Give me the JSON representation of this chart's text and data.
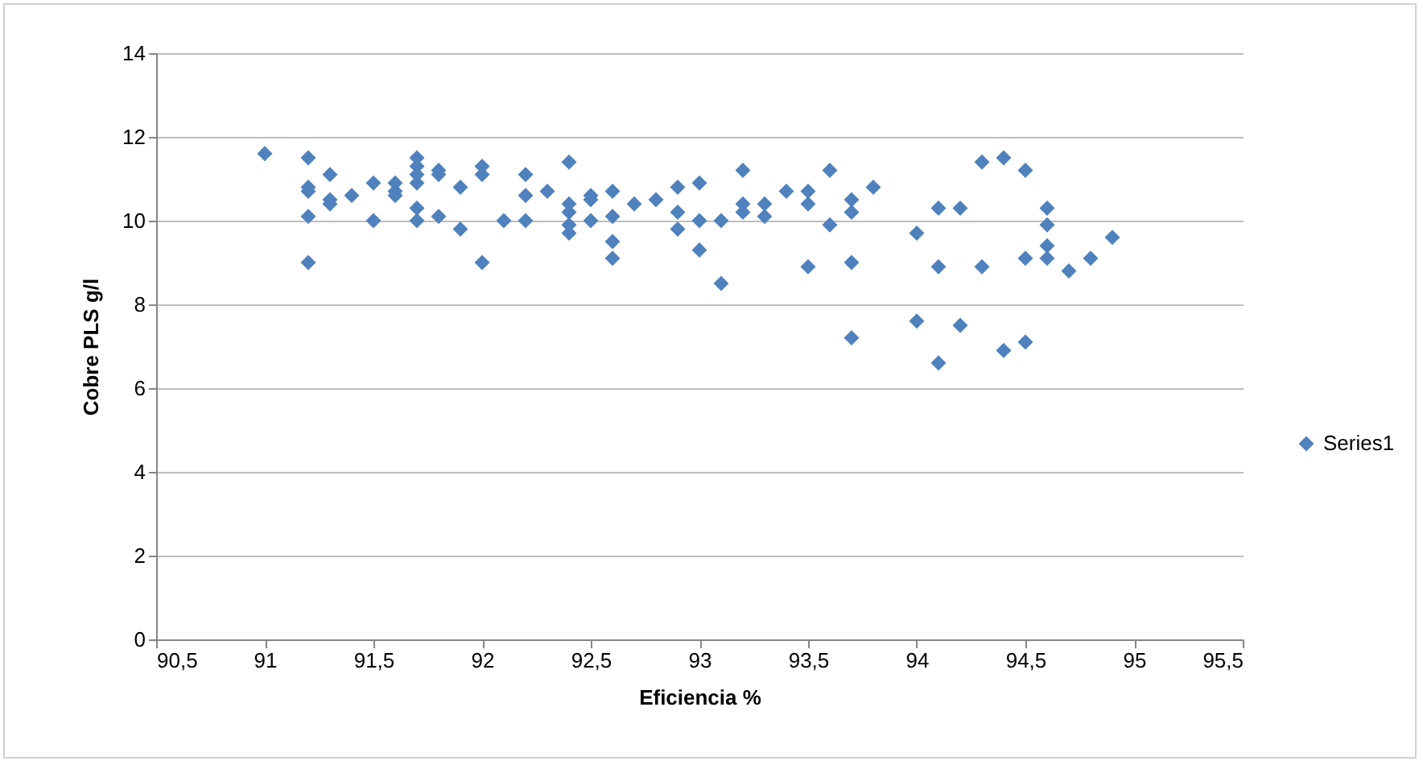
{
  "chart_data": {
    "type": "scatter",
    "xlabel": "Eficiencia %",
    "ylabel": "Cobre PLS g/l",
    "x": [
      91.0,
      91.2,
      91.2,
      91.2,
      91.2,
      91.2,
      91.3,
      91.3,
      91.3,
      91.4,
      91.5,
      91.5,
      91.6,
      91.6,
      91.6,
      91.7,
      91.7,
      91.7,
      91.7,
      91.7,
      91.7,
      91.8,
      91.8,
      91.8,
      91.9,
      91.9,
      92.0,
      92.0,
      92.0,
      92.1,
      92.2,
      92.2,
      92.2,
      92.3,
      92.4,
      92.4,
      92.4,
      92.4,
      92.4,
      92.5,
      92.5,
      92.5,
      92.6,
      92.6,
      92.6,
      92.6,
      92.7,
      92.8,
      92.9,
      92.9,
      92.9,
      93.0,
      93.0,
      93.0,
      93.1,
      93.1,
      93.2,
      93.2,
      93.2,
      93.3,
      93.3,
      93.4,
      93.5,
      93.5,
      93.5,
      93.6,
      93.6,
      93.7,
      93.7,
      93.7,
      93.7,
      93.8,
      94.0,
      94.0,
      94.1,
      94.1,
      94.1,
      94.2,
      94.2,
      94.3,
      94.3,
      94.4,
      94.4,
      94.5,
      94.5,
      94.5,
      94.6,
      94.6,
      94.6,
      94.6,
      94.7,
      94.8,
      94.9
    ],
    "series": [
      {
        "name": "Series1",
        "color": "#4f81bd",
        "values": [
          11.6,
          11.5,
          10.8,
          10.7,
          10.1,
          9.0,
          11.1,
          10.5,
          10.4,
          10.6,
          10.9,
          10.0,
          10.9,
          10.7,
          10.6,
          11.5,
          11.3,
          11.1,
          10.9,
          10.3,
          10.0,
          11.2,
          11.1,
          10.1,
          10.8,
          9.8,
          11.3,
          11.1,
          9.0,
          10.0,
          11.1,
          10.6,
          10.0,
          10.7,
          11.4,
          10.4,
          10.2,
          9.9,
          9.7,
          10.6,
          10.5,
          10.0,
          10.7,
          10.1,
          9.5,
          9.1,
          10.4,
          10.5,
          10.8,
          10.2,
          9.8,
          10.9,
          10.0,
          9.3,
          10.0,
          8.5,
          11.2,
          10.4,
          10.2,
          10.4,
          10.1,
          10.7,
          10.7,
          10.4,
          8.9,
          11.2,
          9.9,
          10.5,
          10.2,
          9.0,
          7.2,
          10.8,
          9.7,
          7.6,
          10.3,
          8.9,
          6.6,
          10.3,
          7.5,
          11.4,
          8.9,
          11.5,
          6.9,
          11.2,
          9.1,
          7.1,
          10.3,
          9.9,
          9.4,
          9.1,
          8.8,
          9.1,
          9.6
        ]
      }
    ],
    "xlim": [
      90.5,
      95.5
    ],
    "xticks": [
      {
        "value": 90.5,
        "label": "90,5"
      },
      91,
      {
        "value": 91.5,
        "label": "91,5"
      },
      92,
      {
        "value": 92.5,
        "label": "92,5"
      },
      93,
      {
        "value": 93.5,
        "label": "93,5"
      },
      94,
      {
        "value": 94.5,
        "label": "94,5"
      },
      95,
      {
        "value": 95.5,
        "label": "95,5"
      }
    ],
    "ylim": [
      0,
      14
    ],
    "yticks": [
      0,
      2,
      4,
      6,
      8,
      10,
      12,
      14
    ],
    "grid": "y",
    "legend": "right",
    "marker": "diamond"
  }
}
